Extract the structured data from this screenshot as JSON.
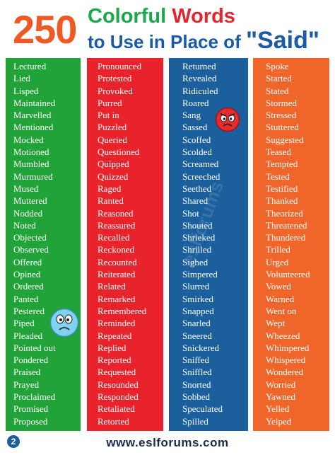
{
  "header": {
    "number": "250",
    "word_colorful": "Colorful",
    "word_words": "Words",
    "line2_prefix": "to Use in Place of",
    "said": "\"Said\""
  },
  "colors": {
    "orange": "#ef5a24",
    "green": "#21a339",
    "red": "#e9232b",
    "blue": "#1b5f9c",
    "column_orange": "#f0662a"
  },
  "columns": [
    [
      "Lectured",
      "Lied",
      "Lisped",
      "Maintained",
      "Marvelled",
      "Mentioned",
      "Mocked",
      "Motioned",
      "Mumbled",
      "Murmured",
      "Mused",
      "Muttered",
      "Nodded",
      "Noted",
      "Objected",
      "Observed",
      "Offered",
      "Opined",
      "Ordered",
      "Panted",
      "Pestered",
      "Piped",
      "Pleaded",
      "Pointed out",
      "Pondered",
      "Praised",
      "Prayed",
      "Proclaimed",
      "Promised",
      "Proposed"
    ],
    [
      "Pronounced",
      "Protested",
      "Provoked",
      "Purred",
      "Put in",
      "Puzzled",
      "Queried",
      "Questioned",
      "Quipped",
      "Quizzed",
      "Raged",
      "Ranted",
      "Reasoned",
      "Reassured",
      "Recalled",
      "Reckoned",
      "Recounted",
      "Reiterated",
      "Related",
      "Remarked",
      "Remembered",
      "Reminded",
      "Repeated",
      "Replied",
      "Reported",
      "Requested",
      "Resounded",
      "Responded",
      "Retaliated",
      "Retorted"
    ],
    [
      "Returned",
      "Revealed",
      "Ridiculed",
      "Roared",
      "Sang",
      "Sassed",
      "Scoffed",
      "Scolded",
      "Screamed",
      "Screeched",
      "Seethed",
      "Shared",
      "Shot",
      "Shouted",
      "Shrieked",
      "Shrilled",
      "Sighed",
      "Simpered",
      "Slurred",
      "Smirked",
      "Snapped",
      "Snarled",
      "Sneered",
      "Snickered",
      "Sniffed",
      "Sniffled",
      "Snorted",
      "Sobbed",
      "Speculated",
      "Spilled"
    ],
    [
      "Spoke",
      "Started",
      "Stated",
      "Stormed",
      "Stressed",
      "Stuttered",
      "Suggested",
      "Teased",
      "Tempted",
      "Tested",
      "Testified",
      "Thanked",
      "Theorized",
      "Threatened",
      "Thundered",
      "Trilled",
      "Urged",
      "Volunteered",
      "Vowed",
      "Warned",
      "Went on",
      "Wept",
      "Wheezed",
      "Whimpered",
      "Whispered",
      "Wondered",
      "Worried",
      "Yawned",
      "Yelled",
      "Yelped"
    ]
  ],
  "footer": {
    "page_number": "2",
    "website": "www.eslforums.com"
  },
  "watermark": "eslforums",
  "icons": [
    "surprised-face-icon",
    "angry-face-icon"
  ]
}
